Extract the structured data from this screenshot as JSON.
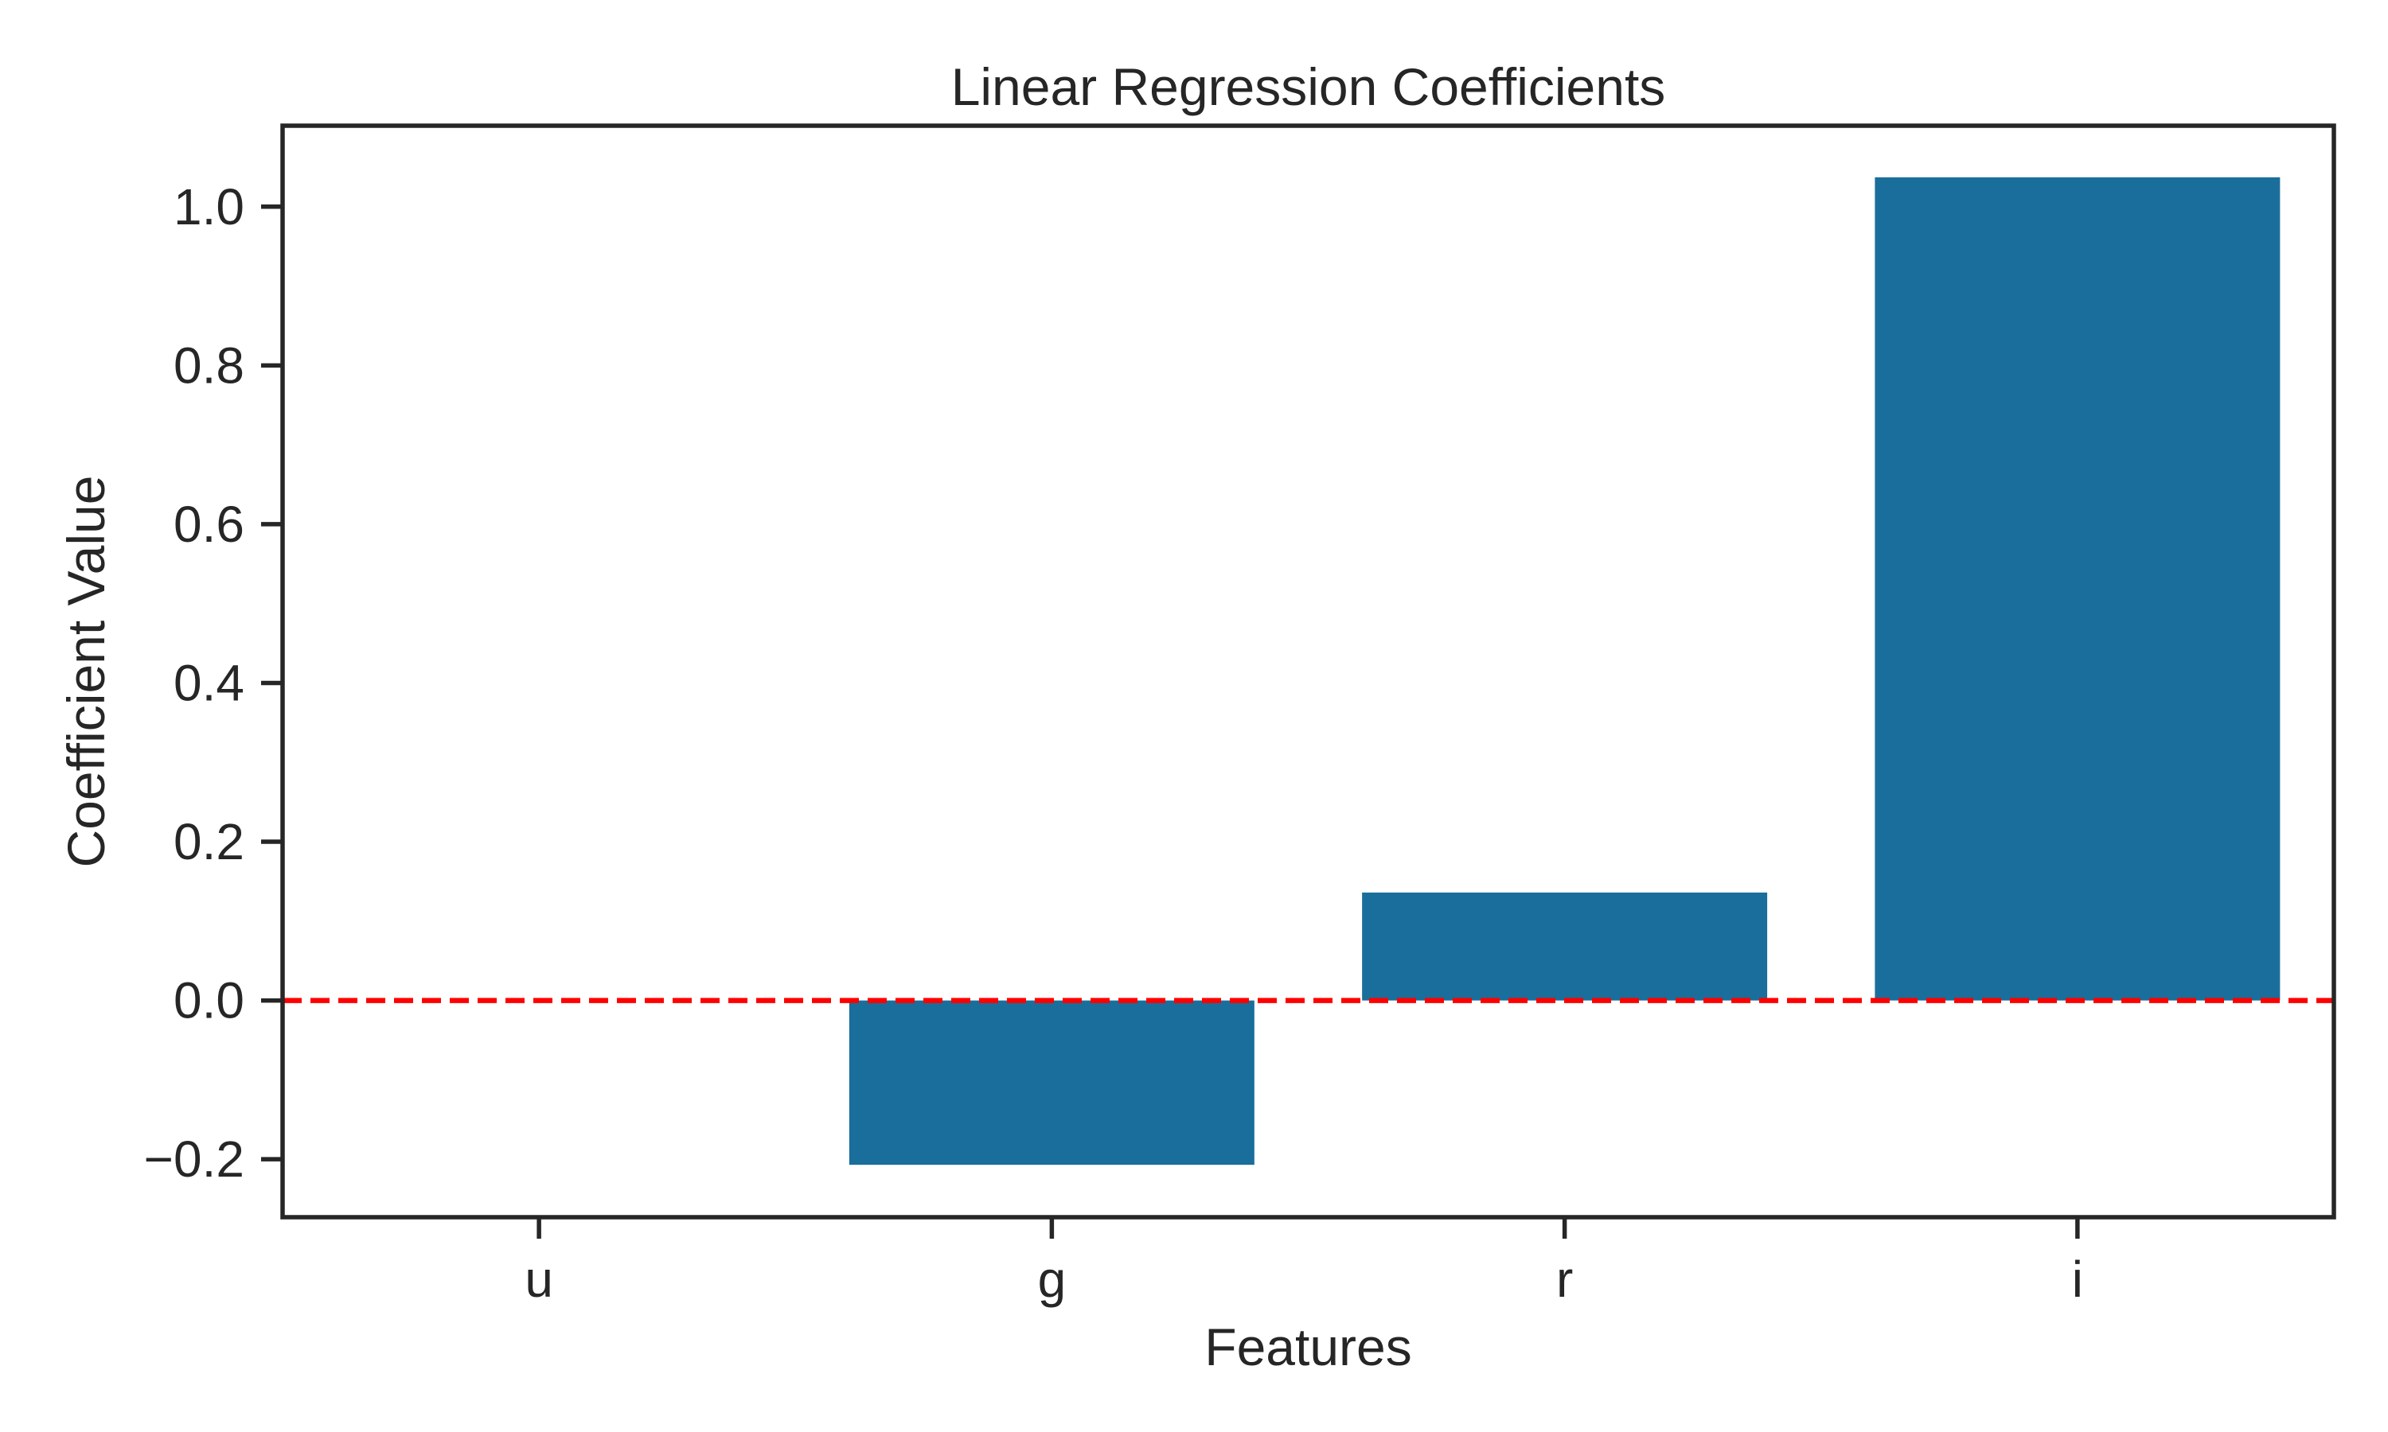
{
  "chart_data": {
    "type": "bar",
    "title": "Linear Regression Coefficients",
    "xlabel": "Features",
    "ylabel": "Coefficient Value",
    "categories": [
      "u",
      "g",
      "r",
      "i"
    ],
    "values": [
      0.0,
      -0.207,
      0.136,
      1.037
    ],
    "ylim": [
      -0.273,
      1.102
    ],
    "yticks": [
      -0.2,
      0.0,
      0.2,
      0.4,
      0.6,
      0.8,
      1.0
    ],
    "ytick_labels": [
      "−0.2",
      "0.0",
      "0.2",
      "0.4",
      "0.6",
      "0.8",
      "1.0"
    ],
    "reference_line": {
      "y": 0.0,
      "style": "dashed",
      "color": "#ff0000"
    },
    "bar_color": "#1a6e9b",
    "axis_color": "#262626",
    "grid": false,
    "legend": "none"
  }
}
